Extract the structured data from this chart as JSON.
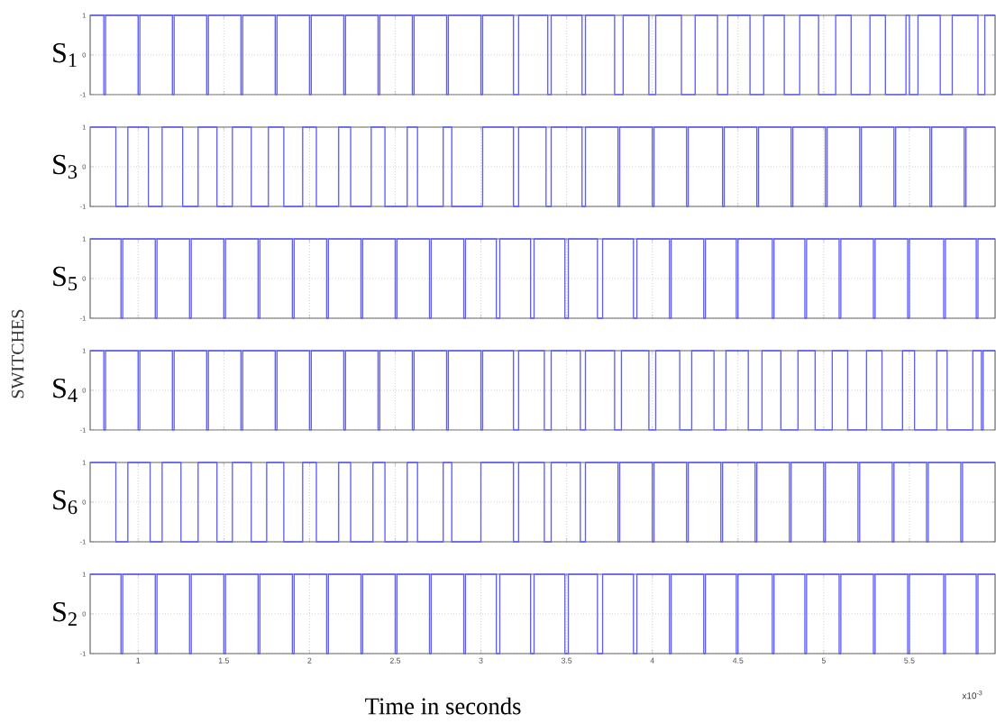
{
  "chart_data": [
    {
      "type": "step",
      "ylabel": "S$_{1}$",
      "color": "#5c5cff",
      "grid": true,
      "tick_labels": "y",
      "xlim": [
        0.72,
        6
      ],
      "ylim": [
        -1,
        1
      ],
      "yticks": [
        -1,
        0,
        1
      ],
      "xticks": [
        1,
        1.5,
        2,
        2.5,
        3,
        3.5,
        4,
        4.5,
        5,
        5.5
      ],
      "x": [
        0.72,
        0.8,
        0.81,
        1.0,
        1.01,
        1.2,
        1.21,
        1.4,
        1.41,
        1.6,
        1.61,
        1.8,
        1.81,
        2.0,
        2.01,
        2.2,
        2.21,
        2.4,
        2.41,
        2.6,
        2.61,
        2.8,
        2.81,
        3.0,
        3.01,
        3.19,
        3.22,
        3.39,
        3.41,
        3.59,
        3.61,
        3.78,
        3.83,
        3.98,
        4.02,
        4.17,
        4.25,
        4.38,
        4.44,
        4.57,
        4.65,
        4.77,
        4.86,
        4.97,
        5.07,
        5.16,
        5.27,
        5.36,
        5.48,
        5.5,
        5.55,
        5.68,
        5.75,
        5.9,
        5.94,
        6
      ],
      "values": [
        1,
        -1,
        1,
        -1,
        1,
        -1,
        1,
        -1,
        1,
        -1,
        1,
        -1,
        1,
        -1,
        1,
        -1,
        1,
        -1,
        1,
        -1,
        1,
        -1,
        1,
        -1,
        1,
        -1,
        1,
        -1,
        1,
        -1,
        1,
        -1,
        1,
        -1,
        1,
        -1,
        1,
        -1,
        1,
        -1,
        1,
        -1,
        1,
        -1,
        1,
        -1,
        1,
        -1,
        1,
        -1,
        1,
        -1,
        1,
        -1,
        1,
        1
      ]
    },
    {
      "type": "step",
      "ylabel": "S$_{3}$",
      "color": "#5c5cff",
      "grid": true,
      "tick_labels": "y",
      "xlim": [
        0.72,
        6
      ],
      "ylim": [
        -1,
        1
      ],
      "yticks": [
        -1,
        0,
        1
      ],
      "xticks": [
        1,
        1.5,
        2,
        2.5,
        3,
        3.5,
        4,
        4.5,
        5,
        5.5
      ],
      "x": [
        0.72,
        0.87,
        0.94,
        1.06,
        1.14,
        1.26,
        1.35,
        1.46,
        1.55,
        1.66,
        1.76,
        1.85,
        1.96,
        2.04,
        2.17,
        2.24,
        2.36,
        2.44,
        2.57,
        2.63,
        2.78,
        2.83,
        3.01,
        3.19,
        3.22,
        3.38,
        3.41,
        3.59,
        3.61,
        3.8,
        3.81,
        4.0,
        4.01,
        4.2,
        4.21,
        4.41,
        4.42,
        4.61,
        4.62,
        4.81,
        4.82,
        5.01,
        5.02,
        5.21,
        5.22,
        5.41,
        5.42,
        5.62,
        5.63,
        5.82,
        5.83,
        6
      ],
      "values": [
        1,
        -1,
        1,
        -1,
        1,
        -1,
        1,
        -1,
        1,
        -1,
        1,
        -1,
        1,
        -1,
        1,
        -1,
        1,
        -1,
        1,
        -1,
        1,
        -1,
        1,
        -1,
        1,
        -1,
        1,
        -1,
        1,
        -1,
        1,
        -1,
        1,
        -1,
        1,
        -1,
        1,
        -1,
        1,
        -1,
        1,
        -1,
        1,
        -1,
        1,
        -1,
        1,
        -1,
        1,
        -1,
        1,
        1
      ]
    },
    {
      "type": "step",
      "ylabel": "S$_{5}$",
      "color": "#5c5cff",
      "grid": true,
      "tick_labels": "y",
      "xlim": [
        0.72,
        6
      ],
      "ylim": [
        -1,
        1
      ],
      "yticks": [
        -1,
        0,
        1
      ],
      "xticks": [
        1,
        1.5,
        2,
        2.5,
        3,
        3.5,
        4,
        4.5,
        5,
        5.5
      ],
      "annotations": [
        "SWITCHES"
      ],
      "x": [
        0.72,
        0.9,
        0.91,
        1.1,
        1.11,
        1.3,
        1.31,
        1.5,
        1.51,
        1.7,
        1.71,
        1.9,
        1.91,
        2.1,
        2.11,
        2.3,
        2.31,
        2.5,
        2.51,
        2.7,
        2.71,
        2.9,
        2.91,
        3.09,
        3.11,
        3.29,
        3.31,
        3.49,
        3.51,
        3.68,
        3.71,
        3.89,
        3.91,
        4.1,
        4.11,
        4.3,
        4.31,
        4.49,
        4.5,
        4.7,
        4.71,
        4.89,
        4.9,
        5.09,
        5.1,
        5.29,
        5.3,
        5.49,
        5.5,
        5.7,
        5.71,
        5.89,
        5.9,
        6
      ],
      "values": [
        1,
        -1,
        1,
        -1,
        1,
        -1,
        1,
        -1,
        1,
        -1,
        1,
        -1,
        1,
        -1,
        1,
        -1,
        1,
        -1,
        1,
        -1,
        1,
        -1,
        1,
        -1,
        1,
        -1,
        1,
        -1,
        1,
        -1,
        1,
        -1,
        1,
        -1,
        1,
        -1,
        1,
        -1,
        1,
        -1,
        1,
        -1,
        1,
        -1,
        1,
        -1,
        1,
        -1,
        1,
        -1,
        1,
        -1,
        1,
        1
      ]
    },
    {
      "type": "step",
      "ylabel": "S$_{4}$",
      "color": "#5c5cff",
      "grid": true,
      "tick_labels": "y",
      "xlim": [
        0.72,
        6
      ],
      "ylim": [
        -1,
        1
      ],
      "yticks": [
        -1,
        0,
        1
      ],
      "xticks": [
        1,
        1.5,
        2,
        2.5,
        3,
        3.5,
        4,
        4.5,
        5,
        5.5
      ],
      "x": [
        0.72,
        0.8,
        0.81,
        1.0,
        1.01,
        1.2,
        1.21,
        1.4,
        1.41,
        1.6,
        1.61,
        1.8,
        1.81,
        2.0,
        2.01,
        2.2,
        2.21,
        2.4,
        2.41,
        2.6,
        2.61,
        2.8,
        2.81,
        3.0,
        3.01,
        3.19,
        3.22,
        3.37,
        3.41,
        3.58,
        3.61,
        3.78,
        3.82,
        3.98,
        4.02,
        4.16,
        4.23,
        4.36,
        4.43,
        4.56,
        4.64,
        4.75,
        4.85,
        4.95,
        5.05,
        5.14,
        5.25,
        5.34,
        5.46,
        5.53,
        5.66,
        5.72,
        5.87,
        5.92,
        5.93,
        6
      ],
      "values": [
        1,
        -1,
        1,
        -1,
        1,
        -1,
        1,
        -1,
        1,
        -1,
        1,
        -1,
        1,
        -1,
        1,
        -1,
        1,
        -1,
        1,
        -1,
        1,
        -1,
        1,
        -1,
        1,
        -1,
        1,
        -1,
        1,
        -1,
        1,
        -1,
        1,
        -1,
        1,
        -1,
        1,
        -1,
        1,
        -1,
        1,
        -1,
        1,
        -1,
        1,
        -1,
        1,
        -1,
        1,
        -1,
        1,
        -1,
        1,
        -1,
        1,
        1
      ]
    },
    {
      "type": "step",
      "ylabel": "S$_{6}$",
      "color": "#5c5cff",
      "grid": true,
      "tick_labels": "y",
      "xlim": [
        0.72,
        6
      ],
      "ylim": [
        -1,
        1
      ],
      "yticks": [
        -1,
        0,
        1
      ],
      "xticks": [
        1,
        1.5,
        2,
        2.5,
        3,
        3.5,
        4,
        4.5,
        5,
        5.5
      ],
      "x": [
        0.72,
        0.87,
        0.94,
        1.07,
        1.14,
        1.25,
        1.35,
        1.46,
        1.55,
        1.66,
        1.75,
        1.85,
        1.96,
        2.04,
        2.17,
        2.24,
        2.37,
        2.44,
        2.57,
        2.63,
        2.78,
        2.83,
        3.0,
        3.19,
        3.22,
        3.37,
        3.41,
        3.58,
        3.61,
        3.8,
        3.81,
        4.0,
        4.01,
        4.2,
        4.21,
        4.4,
        4.41,
        4.6,
        4.61,
        4.8,
        4.81,
        5.0,
        5.01,
        5.2,
        5.21,
        5.4,
        5.41,
        5.6,
        5.61,
        5.8,
        5.81,
        6
      ],
      "values": [
        1,
        -1,
        1,
        -1,
        1,
        -1,
        1,
        -1,
        1,
        -1,
        1,
        -1,
        1,
        -1,
        1,
        -1,
        1,
        -1,
        1,
        -1,
        1,
        -1,
        1,
        -1,
        1,
        -1,
        1,
        -1,
        1,
        -1,
        1,
        -1,
        1,
        -1,
        1,
        -1,
        1,
        -1,
        1,
        -1,
        1,
        -1,
        1,
        -1,
        1,
        -1,
        1,
        -1,
        1,
        -1,
        1,
        1
      ]
    },
    {
      "type": "step",
      "ylabel": "S$_{2}$",
      "xlabel": "Time in seconds",
      "color": "#5c5cff",
      "grid": true,
      "xlim": [
        0.72,
        6
      ],
      "ylim": [
        -1,
        1
      ],
      "yticks": [
        -1,
        0,
        1
      ],
      "xticks": [
        1,
        1.5,
        2,
        2.5,
        3,
        3.5,
        4,
        4.5,
        5,
        5.5
      ],
      "annotations": [
        "x10$^{-3}$"
      ],
      "x": [
        0.72,
        0.9,
        0.91,
        1.1,
        1.11,
        1.3,
        1.31,
        1.5,
        1.51,
        1.7,
        1.71,
        1.9,
        1.91,
        2.1,
        2.11,
        2.3,
        2.31,
        2.5,
        2.51,
        2.7,
        2.71,
        2.9,
        2.91,
        3.09,
        3.11,
        3.29,
        3.31,
        3.49,
        3.51,
        3.68,
        3.71,
        3.89,
        3.91,
        4.1,
        4.11,
        4.3,
        4.31,
        4.49,
        4.5,
        4.7,
        4.71,
        4.89,
        4.9,
        5.09,
        5.1,
        5.29,
        5.3,
        5.49,
        5.5,
        5.7,
        5.71,
        5.89,
        5.9,
        6
      ],
      "values": [
        1,
        -1,
        1,
        -1,
        1,
        -1,
        1,
        -1,
        1,
        -1,
        1,
        -1,
        1,
        -1,
        1,
        -1,
        1,
        -1,
        1,
        -1,
        1,
        -1,
        1,
        -1,
        1,
        -1,
        1,
        -1,
        1,
        -1,
        1,
        -1,
        1,
        -1,
        1,
        -1,
        1,
        -1,
        1,
        -1,
        1,
        -1,
        1,
        -1,
        1,
        -1,
        1,
        -1,
        1,
        -1,
        1,
        -1,
        1,
        1
      ]
    }
  ]
}
